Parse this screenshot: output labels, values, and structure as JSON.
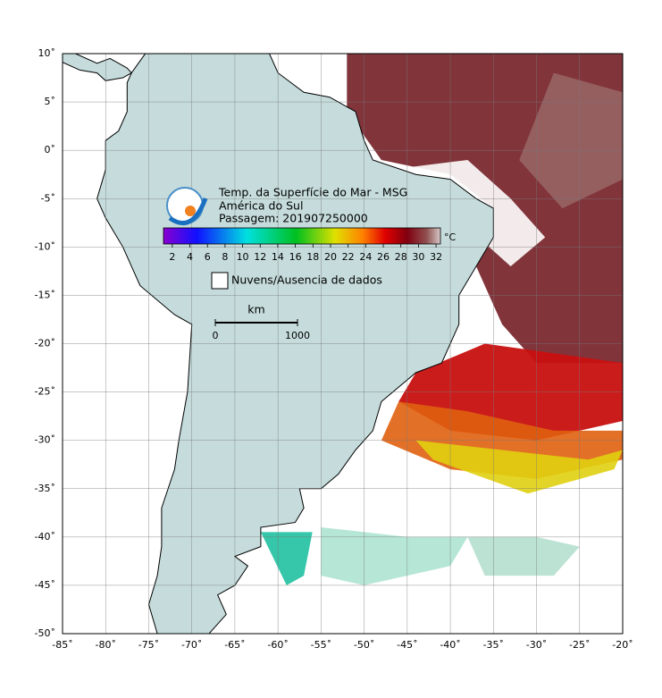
{
  "map": {
    "title_lines": [
      "Temp. da Superfície do Mar - MSG",
      "América do Sul",
      "Passagem: 201907250000"
    ],
    "lon_lim": [
      -85,
      -20
    ],
    "lat_lim": [
      10,
      -50
    ],
    "lon_ticks": [
      {
        "value": -85,
        "label": "-85˚"
      },
      {
        "value": -80,
        "label": "-80˚"
      },
      {
        "value": -75,
        "label": "-75˚"
      },
      {
        "value": -70,
        "label": "-70˚"
      },
      {
        "value": -65,
        "label": "-65˚"
      },
      {
        "value": -60,
        "label": "-60˚"
      },
      {
        "value": -55,
        "label": "-55˚"
      },
      {
        "value": -50,
        "label": "-50˚"
      },
      {
        "value": -45,
        "label": "-45˚"
      },
      {
        "value": -40,
        "label": "-40˚"
      },
      {
        "value": -35,
        "label": "-35˚"
      },
      {
        "value": -30,
        "label": "-30˚"
      },
      {
        "value": -25,
        "label": "-25˚"
      },
      {
        "value": -20,
        "label": "-20˚"
      }
    ],
    "lat_ticks": [
      {
        "value": 10,
        "label": "10˚"
      },
      {
        "value": 5,
        "label": "5˚"
      },
      {
        "value": 0,
        "label": "0˚"
      },
      {
        "value": -5,
        "label": "-5˚"
      },
      {
        "value": -10,
        "label": "-10˚"
      },
      {
        "value": -15,
        "label": "-15˚"
      },
      {
        "value": -20,
        "label": "-20˚"
      },
      {
        "value": -25,
        "label": "-25˚"
      },
      {
        "value": -30,
        "label": "-30˚"
      },
      {
        "value": -35,
        "label": "-35˚"
      },
      {
        "value": -40,
        "label": "-40˚"
      },
      {
        "value": -45,
        "label": "-45˚"
      },
      {
        "value": -50,
        "label": "-50˚"
      }
    ],
    "colorbar": {
      "unit": "°C",
      "lim": [
        1,
        32.5
      ],
      "ticks": [
        2,
        4,
        6,
        8,
        10,
        12,
        14,
        16,
        18,
        20,
        22,
        24,
        26,
        28,
        30,
        32
      ]
    },
    "legend": "Nuvens/Ausencia de dados",
    "scale_bar": {
      "unit": "km",
      "ticks": [
        0,
        1000
      ]
    }
  }
}
